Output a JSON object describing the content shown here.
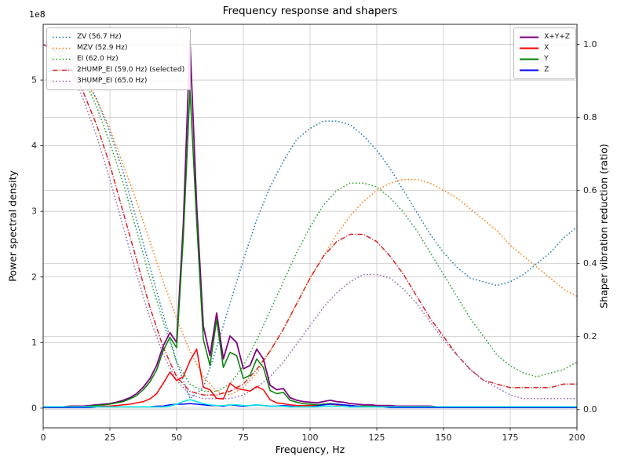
{
  "chart_data": {
    "type": "line",
    "title": "Frequency response and shapers",
    "xlabel": "Frequency, Hz",
    "ylabel_left": "Power spectral density",
    "ylabel_right": "Shaper vibration reduction (ratio)",
    "left_axis_multiplier": "1e8",
    "xlim": [
      0,
      200
    ],
    "xticks": [
      0,
      25,
      50,
      75,
      100,
      125,
      150,
      175,
      200
    ],
    "xtick_labels": [
      "0",
      "25",
      "50",
      "75",
      "100",
      "125",
      "150",
      "175",
      "200"
    ],
    "ylim_left": [
      -0.3,
      5.85
    ],
    "yticks_left": [
      0,
      1,
      2,
      3,
      4,
      5
    ],
    "ytick_left_labels": [
      "0",
      "1",
      "2",
      "3",
      "4",
      "5"
    ],
    "ylim_right": [
      -0.05,
      1.055
    ],
    "yticks_right": [
      0.0,
      0.2,
      0.4,
      0.6,
      0.8,
      1.0
    ],
    "ytick_right_labels": [
      "0.0",
      "0.2",
      "0.4",
      "0.6",
      "0.8",
      "1.0"
    ],
    "grid": true,
    "grid_color": "#c9c9c9",
    "psd_units": "1e8",
    "psd_x": [
      0,
      2.5,
      5,
      7.5,
      10,
      12.5,
      15,
      17.5,
      20,
      22.5,
      25,
      27.5,
      30,
      32.5,
      35,
      37.5,
      40,
      42.5,
      45,
      47.5,
      50,
      52.5,
      55,
      57.5,
      60,
      62.5,
      65,
      67.5,
      70,
      72.5,
      75,
      77.5,
      80,
      82.5,
      85,
      87.5,
      90,
      92.5,
      95,
      97.5,
      100,
      102.5,
      105,
      107.5,
      110,
      112.5,
      115,
      117.5,
      120,
      122.5,
      125,
      127.5,
      130,
      132.5,
      135,
      137.5,
      140,
      142.5,
      145,
      147.5,
      150,
      152.5,
      155,
      157.5,
      160,
      162.5,
      165,
      167.5,
      170,
      172.5,
      175,
      177.5,
      180,
      182.5,
      185,
      187.5,
      190,
      192.5,
      195,
      197.5,
      200
    ],
    "psd_series": [
      {
        "name": "X+Y+Z",
        "color": "#800080",
        "style": "solid",
        "width": 1.8,
        "in_legend": true,
        "values": [
          0.02,
          0.02,
          0.02,
          0.02,
          0.03,
          0.03,
          0.03,
          0.04,
          0.05,
          0.06,
          0.07,
          0.09,
          0.12,
          0.16,
          0.22,
          0.32,
          0.45,
          0.65,
          0.95,
          1.15,
          1.0,
          2.8,
          5.6,
          3.1,
          1.25,
          0.8,
          1.45,
          0.75,
          1.1,
          1.0,
          0.6,
          0.65,
          0.9,
          0.75,
          0.35,
          0.28,
          0.3,
          0.16,
          0.12,
          0.1,
          0.09,
          0.08,
          0.1,
          0.12,
          0.1,
          0.09,
          0.07,
          0.06,
          0.05,
          0.05,
          0.04,
          0.04,
          0.04,
          0.03,
          0.03,
          0.03,
          0.03,
          0.03,
          0.03,
          0.02,
          0.02,
          0.02,
          0.02,
          0.02,
          0.02,
          0.02,
          0.02,
          0.02,
          0.02,
          0.02,
          0.02,
          0.02,
          0.02,
          0.02,
          0.02,
          0.02,
          0.02,
          0.02,
          0.02,
          0.02,
          0.02
        ]
      },
      {
        "name": "X",
        "color": "#ff0000",
        "style": "solid",
        "width": 1.5,
        "in_legend": true,
        "values": [
          0.01,
          0.01,
          0.01,
          0.01,
          0.01,
          0.02,
          0.02,
          0.02,
          0.02,
          0.03,
          0.03,
          0.04,
          0.05,
          0.06,
          0.08,
          0.1,
          0.14,
          0.22,
          0.38,
          0.55,
          0.42,
          0.48,
          0.72,
          0.9,
          0.32,
          0.28,
          0.15,
          0.14,
          0.38,
          0.3,
          0.28,
          0.26,
          0.33,
          0.28,
          0.13,
          0.08,
          0.07,
          0.05,
          0.04,
          0.04,
          0.04,
          0.04,
          0.06,
          0.06,
          0.05,
          0.04,
          0.03,
          0.03,
          0.02,
          0.02,
          0.02,
          0.02,
          0.02,
          0.01,
          0.01,
          0.01,
          0.01,
          0.01,
          0.01,
          0.01,
          0.01,
          0.01,
          0.01,
          0.01,
          0.01,
          0.01,
          0.01,
          0.01,
          0.01,
          0.01,
          0.01,
          0.01,
          0.01,
          0.01,
          0.01,
          0.01,
          0.01,
          0.01,
          0.01,
          0.01,
          0.01
        ]
      },
      {
        "name": "Y",
        "color": "#008000",
        "style": "solid",
        "width": 1.5,
        "in_legend": true,
        "values": [
          0.01,
          0.01,
          0.01,
          0.02,
          0.02,
          0.02,
          0.02,
          0.03,
          0.04,
          0.05,
          0.06,
          0.08,
          0.1,
          0.14,
          0.19,
          0.28,
          0.4,
          0.58,
          0.88,
          1.08,
          0.92,
          2.6,
          4.85,
          2.85,
          1.05,
          0.65,
          1.35,
          0.62,
          0.85,
          0.8,
          0.45,
          0.5,
          0.75,
          0.62,
          0.27,
          0.22,
          0.24,
          0.12,
          0.09,
          0.07,
          0.06,
          0.05,
          0.06,
          0.07,
          0.06,
          0.05,
          0.04,
          0.03,
          0.03,
          0.03,
          0.02,
          0.02,
          0.02,
          0.02,
          0.02,
          0.02,
          0.02,
          0.02,
          0.02,
          0.02,
          0.02,
          0.02,
          0.02,
          0.02,
          0.02,
          0.02,
          0.02,
          0.02,
          0.02,
          0.02,
          0.02,
          0.02,
          0.02,
          0.02,
          0.02,
          0.02,
          0.02,
          0.02,
          0.02,
          0.02,
          0.02
        ]
      },
      {
        "name": "Z",
        "color": "#0000ff",
        "style": "solid",
        "width": 1.5,
        "in_legend": true,
        "values": [
          0.01,
          0.01,
          0.01,
          0.01,
          0.01,
          0.01,
          0.01,
          0.01,
          0.02,
          0.02,
          0.02,
          0.02,
          0.02,
          0.02,
          0.02,
          0.02,
          0.02,
          0.03,
          0.03,
          0.05,
          0.06,
          0.06,
          0.07,
          0.06,
          0.05,
          0.04,
          0.04,
          0.03,
          0.05,
          0.04,
          0.03,
          0.04,
          0.05,
          0.04,
          0.03,
          0.03,
          0.04,
          0.03,
          0.02,
          0.02,
          0.02,
          0.03,
          0.05,
          0.06,
          0.06,
          0.05,
          0.04,
          0.03,
          0.02,
          0.02,
          0.02,
          0.02,
          0.01,
          0.01,
          0.01,
          0.01,
          0.01,
          0.01,
          0.01,
          0.01,
          0.01,
          0.01,
          0.01,
          0.01,
          0.01,
          0.01,
          0.01,
          0.01,
          0.01,
          0.01,
          0.01,
          0.01,
          0.01,
          0.01,
          0.01,
          0.01,
          0.01,
          0.01,
          0.01,
          0.01,
          0.01
        ]
      },
      {
        "name": "",
        "color": "#00e5e5",
        "style": "solid",
        "width": 1.5,
        "in_legend": false,
        "values": [
          0.02,
          0.02,
          0.02,
          0.02,
          0.02,
          0.02,
          0.02,
          0.02,
          0.02,
          0.02,
          0.02,
          0.02,
          0.02,
          0.02,
          0.02,
          0.02,
          0.02,
          0.02,
          0.02,
          0.03,
          0.06,
          0.1,
          0.13,
          0.1,
          0.07,
          0.05,
          0.04,
          0.04,
          0.05,
          0.05,
          0.04,
          0.04,
          0.05,
          0.04,
          0.03,
          0.03,
          0.03,
          0.02,
          0.02,
          0.02,
          0.02,
          0.02,
          0.03,
          0.03,
          0.03,
          0.03,
          0.02,
          0.02,
          0.02,
          0.02,
          0.02,
          0.02,
          0.02,
          0.02,
          0.02,
          0.02,
          0.02,
          0.02,
          0.02,
          0.02,
          0.02,
          0.02,
          0.02,
          0.02,
          0.02,
          0.02,
          0.02,
          0.02,
          0.02,
          0.02,
          0.02,
          0.02,
          0.02,
          0.02,
          0.02,
          0.02,
          0.02,
          0.02,
          0.02,
          0.02,
          0.02
        ]
      }
    ],
    "shaper_x": [
      0,
      5,
      10,
      15,
      20,
      25,
      30,
      35,
      40,
      45,
      50,
      55,
      60,
      65,
      70,
      75,
      80,
      85,
      90,
      95,
      100,
      105,
      110,
      115,
      120,
      125,
      130,
      135,
      140,
      145,
      150,
      155,
      160,
      165,
      170,
      175,
      180,
      185,
      190,
      195,
      200
    ],
    "shaper_series": [
      {
        "label": "ZV (56.7 Hz)",
        "name": "ZV",
        "freq_hz": 56.7,
        "selected": false,
        "color": "#1f77b4",
        "style": "dotted",
        "values": [
          1.0,
          0.99,
          0.97,
          0.92,
          0.85,
          0.76,
          0.65,
          0.52,
          0.39,
          0.26,
          0.13,
          0.03,
          0.06,
          0.17,
          0.29,
          0.41,
          0.52,
          0.61,
          0.68,
          0.74,
          0.77,
          0.79,
          0.79,
          0.78,
          0.75,
          0.71,
          0.66,
          0.6,
          0.54,
          0.48,
          0.43,
          0.39,
          0.36,
          0.35,
          0.34,
          0.35,
          0.37,
          0.4,
          0.43,
          0.47,
          0.5
        ]
      },
      {
        "label": "MZV (52.9 Hz)",
        "name": "MZV",
        "freq_hz": 52.9,
        "selected": false,
        "color": "#ff7f0e",
        "style": "dotted",
        "values": [
          1.0,
          0.99,
          0.96,
          0.91,
          0.85,
          0.77,
          0.67,
          0.57,
          0.46,
          0.35,
          0.25,
          0.16,
          0.09,
          0.05,
          0.04,
          0.06,
          0.1,
          0.16,
          0.22,
          0.29,
          0.36,
          0.42,
          0.48,
          0.53,
          0.57,
          0.6,
          0.62,
          0.63,
          0.63,
          0.62,
          0.6,
          0.58,
          0.55,
          0.52,
          0.49,
          0.45,
          0.42,
          0.39,
          0.36,
          0.33,
          0.31
        ]
      },
      {
        "label": "EI (62.0 Hz)",
        "name": "EI",
        "freq_hz": 62.0,
        "selected": false,
        "color": "#2ca02c",
        "style": "dotted",
        "values": [
          1.0,
          0.99,
          0.96,
          0.91,
          0.83,
          0.73,
          0.62,
          0.49,
          0.36,
          0.24,
          0.13,
          0.07,
          0.05,
          0.05,
          0.07,
          0.12,
          0.19,
          0.27,
          0.35,
          0.43,
          0.5,
          0.56,
          0.6,
          0.62,
          0.62,
          0.61,
          0.58,
          0.54,
          0.49,
          0.43,
          0.37,
          0.31,
          0.25,
          0.2,
          0.15,
          0.12,
          0.1,
          0.09,
          0.1,
          0.11,
          0.13
        ]
      },
      {
        "label": "2HUMP_EI (59.0 Hz) (selected)",
        "name": "2HUMP_EI",
        "freq_hz": 59.0,
        "selected": true,
        "color": "#d62728",
        "style": "dashdot",
        "values": [
          1.0,
          0.98,
          0.94,
          0.87,
          0.78,
          0.67,
          0.54,
          0.41,
          0.28,
          0.17,
          0.09,
          0.05,
          0.04,
          0.04,
          0.05,
          0.07,
          0.11,
          0.16,
          0.22,
          0.29,
          0.36,
          0.42,
          0.46,
          0.48,
          0.48,
          0.46,
          0.42,
          0.37,
          0.31,
          0.25,
          0.2,
          0.15,
          0.11,
          0.08,
          0.07,
          0.06,
          0.06,
          0.06,
          0.06,
          0.07,
          0.07
        ]
      },
      {
        "label": "3HUMP_EI (65.0 Hz)",
        "name": "3HUMP_EI",
        "freq_hz": 65.0,
        "selected": false,
        "color": "#9467bd",
        "style": "dotted",
        "values": [
          1.0,
          0.98,
          0.93,
          0.85,
          0.75,
          0.63,
          0.5,
          0.37,
          0.25,
          0.15,
          0.08,
          0.04,
          0.03,
          0.03,
          0.03,
          0.04,
          0.06,
          0.09,
          0.13,
          0.18,
          0.23,
          0.28,
          0.32,
          0.35,
          0.37,
          0.37,
          0.36,
          0.33,
          0.29,
          0.24,
          0.19,
          0.15,
          0.11,
          0.08,
          0.06,
          0.04,
          0.03,
          0.03,
          0.03,
          0.03,
          0.03
        ]
      }
    ],
    "legend_left_position": "upper left",
    "legend_right_position": "upper right"
  }
}
